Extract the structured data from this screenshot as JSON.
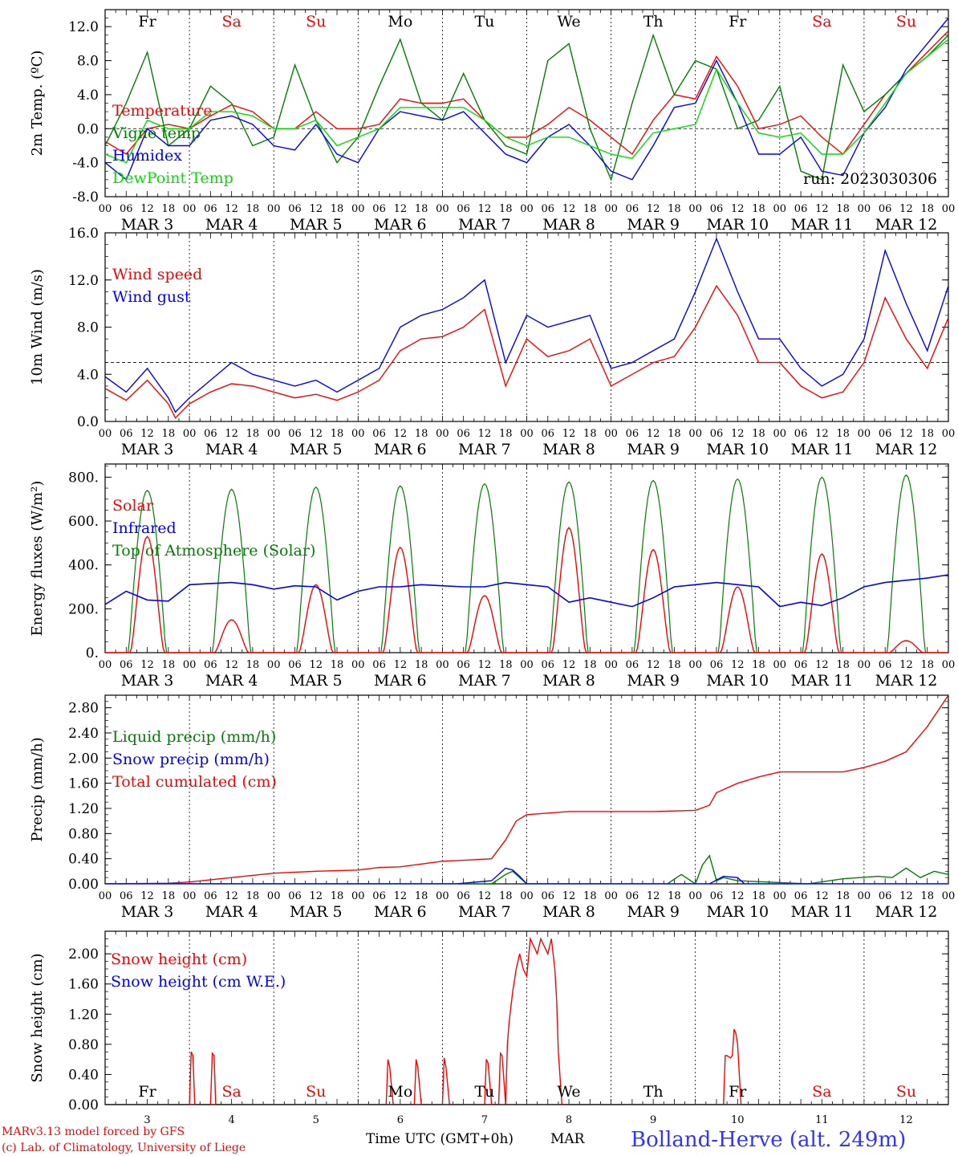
{
  "footer": {
    "credit_line1": "MARv3.13 model forced by GFS",
    "credit_line2": "(c) Lab. of Climatology, University of Liege",
    "xaxis_title": "Time UTC (GMT+0h)",
    "month": "MAR",
    "location": "Bolland-Herve (alt. 249m)"
  },
  "run_label": "run: 2023030306",
  "colors": {
    "red": "#ff0000",
    "green": "#008000",
    "blue": "#0000ff",
    "lightgreen": "#00e000",
    "axis": "#000000"
  },
  "days": [
    {
      "wd": "Fr",
      "date": "MAR  3",
      "num": "3",
      "weekend": false
    },
    {
      "wd": "Sa",
      "date": "MAR  4",
      "num": "4",
      "weekend": true
    },
    {
      "wd": "Su",
      "date": "MAR  5",
      "num": "5",
      "weekend": true
    },
    {
      "wd": "Mo",
      "date": "MAR  6",
      "num": "6",
      "weekend": false
    },
    {
      "wd": "Tu",
      "date": "MAR  7",
      "num": "7",
      "weekend": false
    },
    {
      "wd": "We",
      "date": "MAR  8",
      "num": "8",
      "weekend": false
    },
    {
      "wd": "Th",
      "date": "MAR  9",
      "num": "9",
      "weekend": false
    },
    {
      "wd": "Fr",
      "date": "MAR 10",
      "num": "10",
      "weekend": false
    },
    {
      "wd": "Sa",
      "date": "MAR 11",
      "num": "11",
      "weekend": true
    },
    {
      "wd": "Su",
      "date": "MAR 12",
      "num": "12",
      "weekend": true
    }
  ],
  "hour_ticks": [
    "00",
    "06",
    "12",
    "18"
  ],
  "chart_data": [
    {
      "id": "temp",
      "type": "line",
      "ylabel": "2m Temp. (ºC)",
      "ylim": [
        -8,
        14
      ],
      "yticks": [
        "-8.0",
        "-4.0",
        "0.0",
        "4.0",
        "8.0",
        "12.0"
      ],
      "ytick_values": [
        -8,
        -4,
        0,
        4,
        8,
        12
      ],
      "ref_line": 0,
      "x_unit": "hours since MAR 3 00 UTC",
      "series": [
        {
          "name": "Temperature",
          "color": "#ff0000",
          "x": [
            0,
            6,
            12,
            18,
            24,
            30,
            36,
            42,
            48,
            54,
            60,
            66,
            72,
            78,
            84,
            90,
            96,
            102,
            108,
            114,
            120,
            126,
            132,
            138,
            144,
            150,
            156,
            162,
            168,
            174,
            180,
            186,
            192,
            198,
            204,
            210,
            216,
            222,
            228,
            234,
            240
          ],
          "y": [
            -1.5,
            -3,
            0,
            0.5,
            0,
            1.5,
            2.8,
            2,
            0,
            0,
            2,
            0,
            0,
            0.5,
            3.5,
            3,
            3,
            3.5,
            1,
            -1,
            -1,
            0.5,
            2.5,
            1,
            -1,
            -3,
            1,
            4,
            3.5,
            8.5,
            5,
            0,
            0.5,
            1.5,
            -1,
            -3,
            0.5,
            4,
            6.5,
            9,
            11.5
          ]
        },
        {
          "name": "Vigne temp",
          "color": "#008000",
          "x": [
            0,
            6,
            12,
            18,
            24,
            30,
            36,
            42,
            48,
            54,
            60,
            66,
            72,
            78,
            84,
            90,
            96,
            102,
            108,
            114,
            120,
            126,
            132,
            138,
            144,
            150,
            156,
            162,
            168,
            174,
            180,
            186,
            192,
            198,
            204,
            210,
            216,
            222,
            228,
            234,
            240
          ],
          "y": [
            -2,
            3,
            9,
            -2,
            0,
            5,
            3,
            -2,
            -1,
            7.5,
            1,
            -4,
            -1,
            5,
            10.5,
            3,
            1,
            6.5,
            1,
            -2,
            -3,
            8,
            10,
            0,
            -6,
            3,
            11,
            4,
            8,
            7,
            0,
            1,
            5,
            -5,
            -6,
            7.5,
            2,
            4,
            6.5,
            8.5,
            11
          ]
        },
        {
          "name": "Humidex",
          "color": "#0000ff",
          "x": [
            0,
            6,
            12,
            18,
            24,
            30,
            36,
            42,
            48,
            54,
            60,
            66,
            72,
            78,
            84,
            90,
            96,
            102,
            108,
            114,
            120,
            126,
            132,
            138,
            144,
            150,
            156,
            162,
            168,
            174,
            180,
            186,
            192,
            198,
            204,
            210,
            216,
            222,
            228,
            234,
            240
          ],
          "y": [
            -4,
            -6,
            0,
            -2,
            -2,
            1,
            1.5,
            0.5,
            -2,
            -2.5,
            0.5,
            -3,
            -4,
            0,
            2,
            1.5,
            1,
            2,
            -0.5,
            -3,
            -4,
            -1,
            0.5,
            -2,
            -5,
            -6,
            -2,
            2.5,
            3,
            8,
            3,
            -3,
            -3,
            -1,
            -5,
            -5.5,
            -0.5,
            2.5,
            7,
            10,
            13
          ]
        },
        {
          "name": "DewPoint Temp",
          "color": "#00e000",
          "x": [
            0,
            6,
            12,
            18,
            24,
            30,
            36,
            42,
            48,
            54,
            60,
            66,
            72,
            78,
            84,
            90,
            96,
            102,
            108,
            114,
            120,
            126,
            132,
            138,
            144,
            150,
            156,
            162,
            168,
            174,
            180,
            186,
            192,
            198,
            204,
            210,
            216,
            222,
            228,
            234,
            240
          ],
          "y": [
            -3,
            -4,
            1,
            0,
            0,
            2,
            2,
            1.5,
            0,
            0,
            1,
            -2,
            -1,
            0,
            2.5,
            2.5,
            2.5,
            2.5,
            1,
            -1,
            -2,
            -1,
            -1,
            -2,
            -3,
            -3.5,
            -0.5,
            0,
            0.5,
            7,
            3,
            -0.5,
            -1,
            -0.5,
            -3,
            -3,
            -0.5,
            3,
            6.5,
            8.5,
            10.5
          ]
        }
      ],
      "labels": [
        "Temperature",
        "Vigne temp",
        "Humidex",
        "DewPoint Temp"
      ]
    },
    {
      "id": "wind",
      "type": "line",
      "ylabel": "10m Wind (m/s)",
      "ylim": [
        0,
        16
      ],
      "yticks": [
        "0.0",
        "4.0",
        "8.0",
        "12.0",
        "16.0"
      ],
      "ytick_values": [
        0,
        4,
        8,
        12,
        16
      ],
      "ref_line": 5,
      "x_unit": "hours since MAR 3 00 UTC",
      "series": [
        {
          "name": "Wind speed",
          "color": "#ff0000",
          "x": [
            0,
            6,
            12,
            18,
            20,
            24,
            30,
            36,
            42,
            48,
            54,
            60,
            66,
            72,
            78,
            84,
            90,
            96,
            102,
            108,
            114,
            120,
            126,
            132,
            138,
            144,
            150,
            156,
            162,
            168,
            174,
            180,
            186,
            192,
            198,
            204,
            210,
            216,
            222,
            228,
            234,
            240
          ],
          "y": [
            2.8,
            1.8,
            3.5,
            1.5,
            0.3,
            1.5,
            2.5,
            3.2,
            3,
            2.5,
            2,
            2.3,
            1.8,
            2.5,
            3.5,
            6,
            7,
            7.2,
            8,
            9.5,
            3,
            7,
            5.5,
            6,
            7,
            3,
            4,
            5,
            5.5,
            8,
            11.5,
            9,
            5,
            5,
            3,
            2,
            2.5,
            5,
            10.5,
            7,
            4.5,
            8.8
          ]
        },
        {
          "name": "Wind gust",
          "color": "#0000ff",
          "x": [
            0,
            6,
            12,
            18,
            20,
            24,
            30,
            36,
            42,
            48,
            54,
            60,
            66,
            72,
            78,
            84,
            90,
            96,
            102,
            108,
            114,
            120,
            126,
            132,
            138,
            144,
            150,
            156,
            162,
            168,
            174,
            180,
            186,
            192,
            198,
            204,
            210,
            216,
            222,
            228,
            234,
            240
          ],
          "y": [
            3.8,
            2.5,
            4.5,
            2,
            0.8,
            2,
            3.5,
            5,
            4,
            3.5,
            3,
            3.5,
            2.5,
            3.5,
            4.5,
            8,
            9,
            9.5,
            10.5,
            12,
            5,
            9,
            8,
            8.5,
            9,
            4.5,
            5,
            6,
            7,
            11,
            15.5,
            11,
            7,
            7,
            4.5,
            3,
            4,
            7,
            14.5,
            10,
            6,
            11.5
          ]
        }
      ],
      "labels": [
        "Wind speed",
        "Wind gust"
      ]
    },
    {
      "id": "flux",
      "type": "line",
      "ylabel": "Energy fluxes (W/m²)",
      "ylim": [
        0,
        860
      ],
      "yticks": [
        "0.",
        "200.",
        "400.",
        "600.",
        "800."
      ],
      "ytick_values": [
        0,
        200,
        400,
        600,
        800
      ],
      "x_unit": "hours since MAR 3 00 UTC",
      "toa_peaks": [
        740,
        745,
        755,
        760,
        770,
        778,
        785,
        792,
        800,
        810
      ],
      "solar_peaks": [
        530,
        150,
        310,
        480,
        260,
        570,
        470,
        300,
        450,
        55
      ],
      "infrared": {
        "x": [
          0,
          6,
          12,
          18,
          24,
          30,
          36,
          42,
          48,
          54,
          60,
          66,
          72,
          78,
          84,
          90,
          96,
          102,
          108,
          114,
          120,
          126,
          132,
          138,
          144,
          150,
          156,
          162,
          168,
          174,
          180,
          186,
          192,
          198,
          204,
          210,
          216,
          222,
          228,
          234,
          240
        ],
        "y": [
          220,
          280,
          240,
          235,
          310,
          315,
          320,
          310,
          290,
          305,
          300,
          240,
          280,
          300,
          300,
          310,
          305,
          300,
          300,
          320,
          310,
          300,
          230,
          250,
          230,
          210,
          250,
          300,
          310,
          320,
          310,
          300,
          210,
          230,
          215,
          250,
          300,
          320,
          330,
          340,
          355
        ]
      },
      "labels": [
        "Solar",
        "Infrared",
        "Top of Atmosphere (Solar)"
      ]
    },
    {
      "id": "precip",
      "type": "line",
      "ylabel": "Precip (mm/h)",
      "ylim": [
        0,
        3.0
      ],
      "yticks": [
        "0.00",
        "0.40",
        "0.80",
        "1.20",
        "1.60",
        "2.00",
        "2.40",
        "2.80"
      ],
      "ytick_values": [
        0,
        0.4,
        0.8,
        1.2,
        1.6,
        2.0,
        2.4,
        2.8
      ],
      "x_unit": "hours since MAR 3 00 UTC",
      "series": [
        {
          "name": "Total cumulated (cm)",
          "color": "#ff0000",
          "x": [
            0,
            18,
            24,
            36,
            48,
            60,
            72,
            78,
            84,
            96,
            104,
            110,
            114,
            117,
            120,
            132,
            144,
            156,
            168,
            172,
            174,
            180,
            186,
            192,
            204,
            210,
            216,
            222,
            228,
            234,
            240
          ],
          "y": [
            0,
            0.01,
            0.03,
            0.1,
            0.17,
            0.2,
            0.22,
            0.26,
            0.27,
            0.36,
            0.38,
            0.4,
            0.7,
            1.0,
            1.1,
            1.15,
            1.15,
            1.15,
            1.17,
            1.25,
            1.45,
            1.6,
            1.7,
            1.78,
            1.78,
            1.78,
            1.85,
            1.95,
            2.1,
            2.5,
            3.0
          ]
        },
        {
          "name": "Liquid precip (mm/h)",
          "color": "#008000",
          "x": [
            0,
            100,
            110,
            114,
            116,
            118,
            120,
            160,
            164,
            168,
            170,
            172,
            174,
            176,
            180,
            200,
            210,
            220,
            224,
            228,
            232,
            236,
            240
          ],
          "y": [
            0,
            0,
            0,
            0.15,
            0.2,
            0.1,
            0,
            0,
            0.15,
            0,
            0.3,
            0.45,
            0.05,
            0.1,
            0.05,
            0,
            0.08,
            0.12,
            0.1,
            0.25,
            0.1,
            0.2,
            0.15
          ]
        },
        {
          "name": "Snow precip (mm/h)",
          "color": "#0000ff",
          "x": [
            0,
            100,
            110,
            114,
            116,
            118,
            120,
            172,
            176,
            180,
            182,
            240
          ],
          "y": [
            0,
            0,
            0.05,
            0.25,
            0.22,
            0.12,
            0,
            0,
            0.12,
            0.1,
            0,
            0
          ]
        }
      ],
      "labels": [
        "Liquid precip (mm/h)",
        "Snow precip (mm/h)",
        "Total cumulated (cm)"
      ]
    },
    {
      "id": "snow",
      "type": "line",
      "ylabel": "Snow height (cm)",
      "ylim": [
        0,
        2.3
      ],
      "yticks": [
        "0.00",
        "0.40",
        "0.80",
        "1.20",
        "1.60",
        "2.00"
      ],
      "ytick_values": [
        0,
        0.4,
        0.8,
        1.2,
        1.6,
        2.0
      ],
      "x_unit": "hours since MAR 3 00 UTC",
      "series": [
        {
          "name": "Snow height (cm)",
          "color": "#ff0000",
          "x": [
            0,
            24,
            24.5,
            25,
            25.5,
            30,
            30.5,
            31,
            31.5,
            80,
            80.5,
            81,
            82,
            88,
            88.5,
            89,
            90,
            96,
            96.5,
            97,
            98,
            108,
            108.5,
            109,
            110,
            112,
            112.5,
            113,
            114,
            114.5,
            115,
            116,
            117,
            118,
            119,
            120,
            121,
            122,
            123,
            124,
            125,
            126,
            127,
            128,
            128.5,
            129,
            130,
            131,
            132,
            132.5,
            133,
            176,
            176.5,
            177,
            178,
            178.5,
            179,
            179.5,
            180,
            181,
            182,
            240
          ],
          "y": [
            0,
            0,
            0.7,
            0.65,
            0,
            0,
            0.68,
            0.65,
            0,
            0,
            0.6,
            0.5,
            0,
            0,
            0.6,
            0.5,
            0,
            0,
            0.62,
            0.5,
            0,
            0,
            0.6,
            0.55,
            0,
            0,
            0.68,
            0.65,
            0,
            0.8,
            1.1,
            1.5,
            1.8,
            2.0,
            1.8,
            1.7,
            2.2,
            2.1,
            2.0,
            2.2,
            2.1,
            2.0,
            2.2,
            1.8,
            1.4,
            0.7,
            0,
            0,
            0,
            0,
            0,
            0,
            0.65,
            0.65,
            0.62,
            0.65,
            1.0,
            0.95,
            0.8,
            0,
            0,
            0
          ]
        },
        {
          "name": "Snow height (cm W.E.)",
          "color": "#0000ff",
          "x": [
            0,
            240
          ],
          "y": [
            0,
            0
          ]
        }
      ],
      "labels": [
        "Snow height (cm)",
        "Snow height (cm W.E.)"
      ]
    }
  ]
}
